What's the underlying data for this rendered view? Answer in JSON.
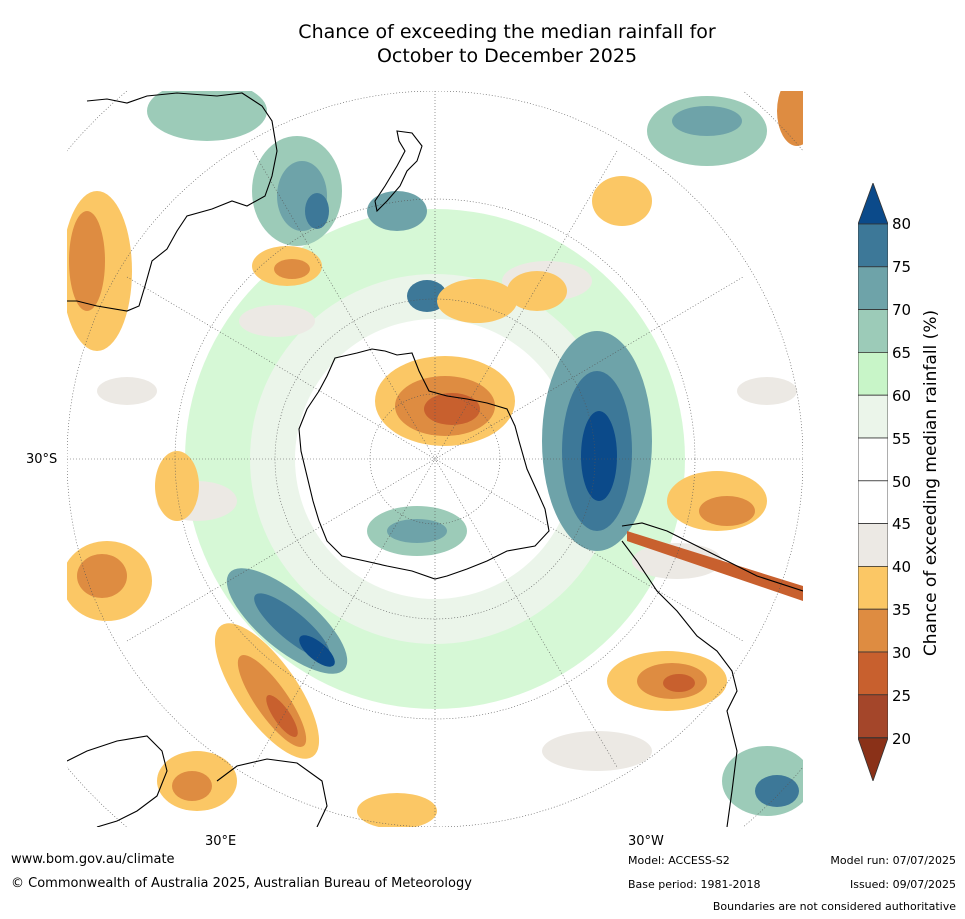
{
  "title_line1": "Chance of exceeding the median rainfall for",
  "title_line2": "October to December 2025",
  "lat_label": "30°S",
  "lon_labels": [
    "30°E",
    "30°W"
  ],
  "colorbar": {
    "label": "Chance of exceeding median rainfall (%)",
    "ticks": [
      "80",
      "75",
      "70",
      "65",
      "60",
      "55",
      "50",
      "45",
      "40",
      "35",
      "30",
      "25",
      "20"
    ],
    "colors": [
      "#0b4a8a",
      "#3d7898",
      "#6ea3a9",
      "#9ccbb8",
      "#c8f5c8",
      "#ebf5ea",
      "#ffffff",
      "#ffffff",
      "#ece9e4",
      "#fbc765",
      "#de8c41",
      "#c8602e",
      "#a4462a",
      "#8a3118"
    ]
  },
  "footer": {
    "website": "www.bom.gov.au/climate",
    "copyright": "© Commonwealth of Australia 2025, Australian Bureau of Meteorology",
    "model": "Model: ACCESS-S2",
    "base_period": "Base period: 1981-2018",
    "model_run": "Model run: 07/07/2025",
    "issued": "Issued: 09/07/2025",
    "disclaimer": "Boundaries are not considered authoritative"
  }
}
